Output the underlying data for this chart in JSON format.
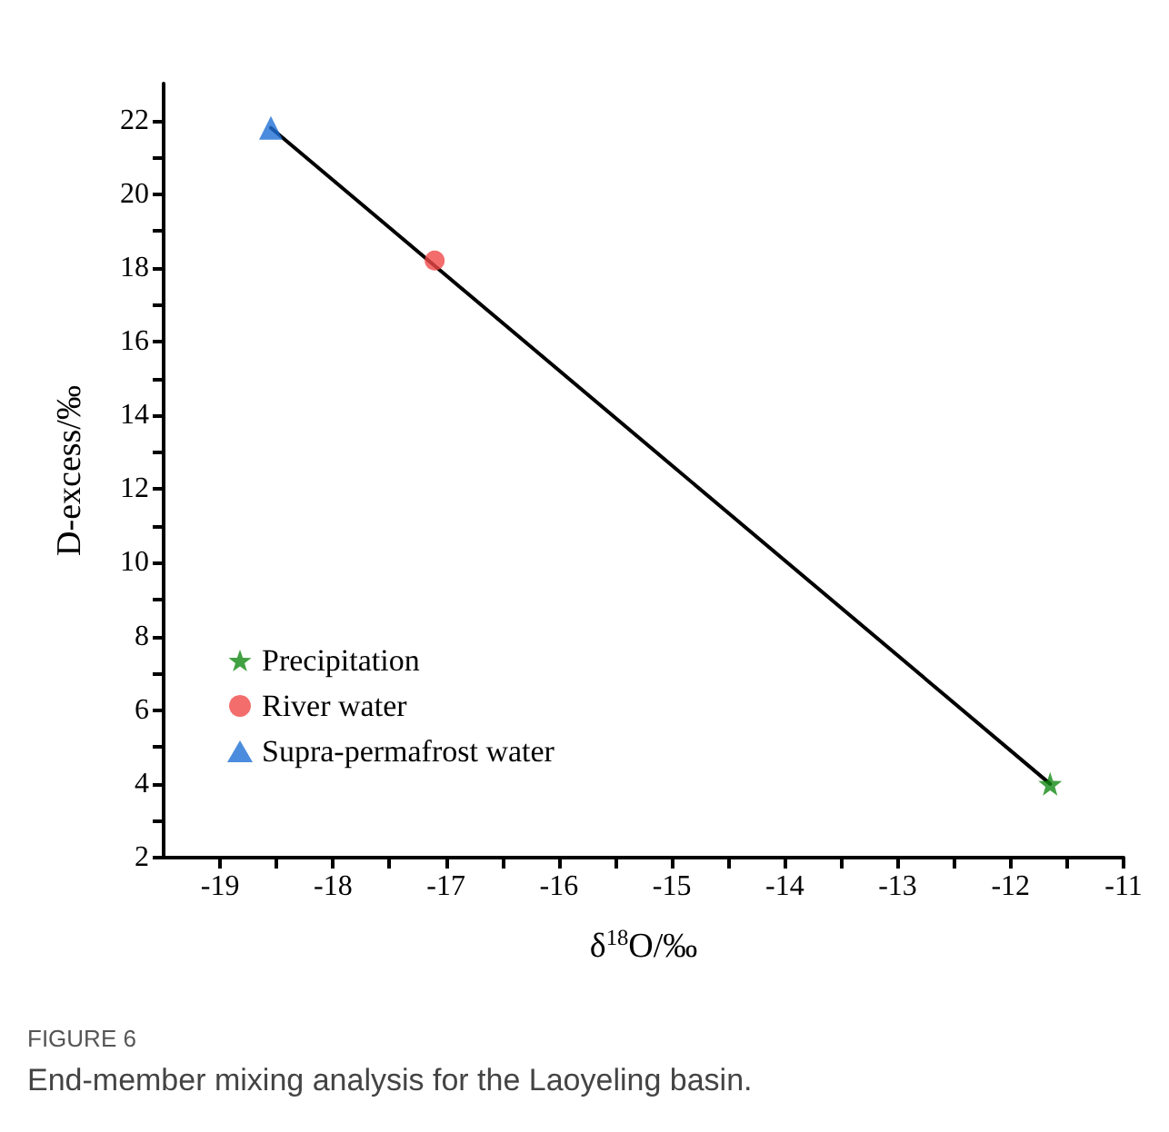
{
  "chart_data": {
    "type": "scatter",
    "xlabel": "δ$^{18}$O/‰",
    "ylabel": "D-excess/‰",
    "annotations": [
      "FIGURE 6",
      "End-member mixing analysis for the Laoyeling basin."
    ],
    "xlim": [
      -19.5,
      -11
    ],
    "ylim": [
      2,
      23
    ],
    "xticks": [
      -19,
      {
        "value": -18.5,
        "label": null
      },
      -18,
      {
        "value": -17.5,
        "label": null
      },
      -17,
      {
        "value": -16.5,
        "label": null
      },
      -16,
      {
        "value": -15.5,
        "label": null
      },
      -15,
      {
        "value": -14.5,
        "label": null
      },
      -14,
      {
        "value": -13.5,
        "label": null
      },
      -13,
      {
        "value": -12.5,
        "label": null
      },
      -12,
      {
        "value": -11.5,
        "label": null
      },
      -11
    ],
    "yticks": [
      2,
      {
        "value": 3,
        "label": null
      },
      4,
      {
        "value": 5,
        "label": null
      },
      6,
      {
        "value": 7,
        "label": null
      },
      8,
      {
        "value": 9,
        "label": null
      },
      10,
      {
        "value": 11,
        "label": null
      },
      12,
      {
        "value": 13,
        "label": null
      },
      14,
      {
        "value": 15,
        "label": null
      },
      16,
      {
        "value": 17,
        "label": null
      },
      18,
      {
        "value": 19,
        "label": null
      },
      20,
      {
        "value": 21,
        "label": null
      },
      22
    ],
    "grid": false,
    "legend": "left",
    "series": [
      {
        "type": "line",
        "color": "#000000",
        "x": [
          -18.55,
          -11.65
        ],
        "values": [
          21.8,
          4.0
        ],
        "marker": "none",
        "line_style": "solid"
      },
      {
        "name": "Precipitation",
        "color": "#138a13",
        "x": [
          -11.65
        ],
        "values": [
          4.0
        ],
        "marker": "star"
      },
      {
        "name": "River water",
        "color": "#f04848",
        "x": [
          -17.1
        ],
        "values": [
          18.2
        ],
        "marker": "circle"
      },
      {
        "name": "Supra-permafrost water",
        "color": "#1f6fd6",
        "x": [
          -18.55
        ],
        "values": [
          21.8
        ],
        "marker": "triangle"
      }
    ]
  }
}
